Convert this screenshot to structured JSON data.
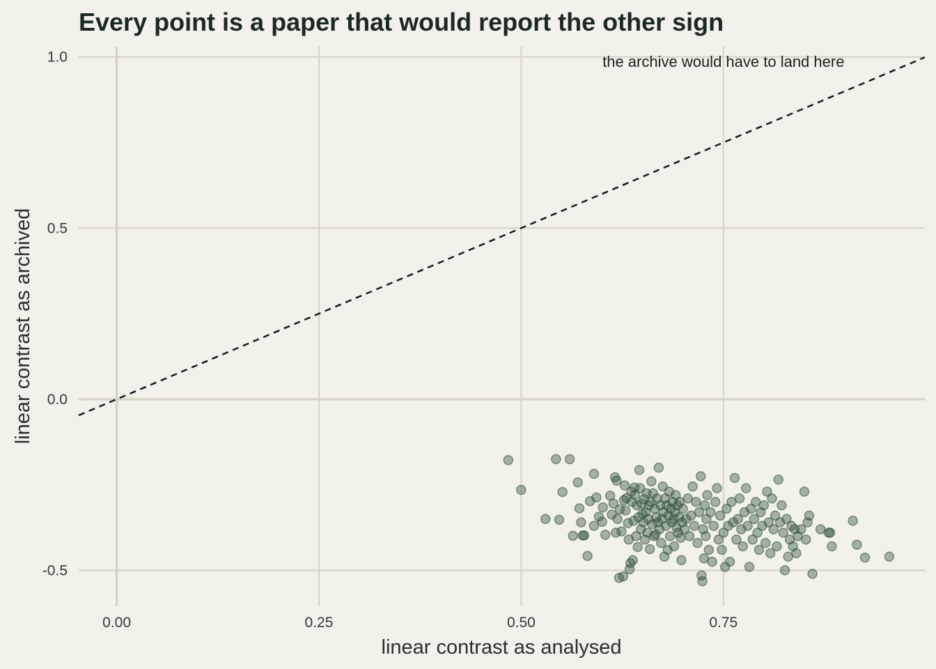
{
  "chart_data": {
    "type": "scatter",
    "title": "Every point is a paper that would report the other sign",
    "xlabel": "linear contrast as analysed",
    "ylabel": "linear contrast as archived",
    "xlim": [
      -0.047,
      0.999
    ],
    "ylim": [
      -0.605,
      1.03
    ],
    "xticks": [
      0.0,
      0.25,
      0.5,
      0.75
    ],
    "xtick_labels": [
      "0.00",
      "0.25",
      "0.50",
      "0.75"
    ],
    "yticks": [
      -0.5,
      0.0,
      0.5,
      1.0
    ],
    "ytick_labels": [
      "-0.5",
      "0.0",
      "0.5",
      "1.0"
    ],
    "grid": true,
    "reference_line": {
      "style": "dashed",
      "slope": 1,
      "intercept": 0
    },
    "annotation": {
      "text": "the archive would have to land here",
      "x": 0.75,
      "y": 0.985
    },
    "point_color": "#2d4f38",
    "point_opacity": 0.4,
    "background": "#f2f1ea",
    "grid_color": "#d4d3c3",
    "points": [
      [
        0.484,
        -0.178
      ],
      [
        0.5,
        -0.265
      ],
      [
        0.53,
        -0.35
      ],
      [
        0.543,
        -0.175
      ],
      [
        0.547,
        -0.352
      ],
      [
        0.551,
        -0.271
      ],
      [
        0.56,
        -0.175
      ],
      [
        0.564,
        -0.399
      ],
      [
        0.57,
        -0.243
      ],
      [
        0.572,
        -0.319
      ],
      [
        0.574,
        -0.36
      ],
      [
        0.576,
        -0.398
      ],
      [
        0.578,
        -0.398
      ],
      [
        0.582,
        -0.458
      ],
      [
        0.585,
        -0.298
      ],
      [
        0.59,
        -0.218
      ],
      [
        0.59,
        -0.37
      ],
      [
        0.593,
        -0.287
      ],
      [
        0.596,
        -0.343
      ],
      [
        0.6,
        -0.358
      ],
      [
        0.601,
        -0.316
      ],
      [
        0.604,
        -0.396
      ],
      [
        0.61,
        -0.282
      ],
      [
        0.612,
        -0.337
      ],
      [
        0.614,
        -0.305
      ],
      [
        0.616,
        -0.228
      ],
      [
        0.617,
        -0.39
      ],
      [
        0.618,
        -0.238
      ],
      [
        0.619,
        -0.35
      ],
      [
        0.621,
        -0.522
      ],
      [
        0.622,
        -0.322
      ],
      [
        0.624,
        -0.386
      ],
      [
        0.626,
        -0.518
      ],
      [
        0.627,
        -0.295
      ],
      [
        0.628,
        -0.252
      ],
      [
        0.629,
        -0.325
      ],
      [
        0.63,
        -0.289
      ],
      [
        0.632,
        -0.362
      ],
      [
        0.633,
        -0.41
      ],
      [
        0.634,
        -0.497
      ],
      [
        0.635,
        -0.479
      ],
      [
        0.636,
        -0.27
      ],
      [
        0.637,
        -0.3
      ],
      [
        0.638,
        -0.47
      ],
      [
        0.639,
        -0.355
      ],
      [
        0.64,
        -0.258
      ],
      [
        0.641,
        -0.28
      ],
      [
        0.642,
        -0.4
      ],
      [
        0.643,
        -0.31
      ],
      [
        0.644,
        -0.432
      ],
      [
        0.645,
        -0.345
      ],
      [
        0.646,
        -0.207
      ],
      [
        0.647,
        -0.26
      ],
      [
        0.648,
        -0.38
      ],
      [
        0.649,
        -0.305
      ],
      [
        0.65,
        -0.335
      ],
      [
        0.651,
        -0.36
      ],
      [
        0.652,
        -0.292
      ],
      [
        0.653,
        -0.41
      ],
      [
        0.654,
        -0.33
      ],
      [
        0.655,
        -0.275
      ],
      [
        0.656,
        -0.39
      ],
      [
        0.657,
        -0.35
      ],
      [
        0.658,
        -0.31
      ],
      [
        0.659,
        -0.438
      ],
      [
        0.66,
        -0.3
      ],
      [
        0.661,
        -0.24
      ],
      [
        0.662,
        -0.365
      ],
      [
        0.663,
        -0.275
      ],
      [
        0.664,
        -0.4
      ],
      [
        0.665,
        -0.32
      ],
      [
        0.666,
        -0.395
      ],
      [
        0.667,
        -0.345
      ],
      [
        0.668,
        -0.29
      ],
      [
        0.669,
        -0.36
      ],
      [
        0.67,
        -0.2
      ],
      [
        0.671,
        -0.38
      ],
      [
        0.672,
        -0.31
      ],
      [
        0.673,
        -0.42
      ],
      [
        0.674,
        -0.35
      ],
      [
        0.675,
        -0.255
      ],
      [
        0.676,
        -0.33
      ],
      [
        0.677,
        -0.46
      ],
      [
        0.678,
        -0.29
      ],
      [
        0.679,
        -0.37
      ],
      [
        0.68,
        -0.31
      ],
      [
        0.681,
        -0.44
      ],
      [
        0.682,
        -0.34
      ],
      [
        0.683,
        -0.27
      ],
      [
        0.684,
        -0.4
      ],
      [
        0.685,
        -0.32
      ],
      [
        0.686,
        -0.36
      ],
      [
        0.687,
        -0.3
      ],
      [
        0.688,
        -0.35
      ],
      [
        0.689,
        -0.43
      ],
      [
        0.69,
        -0.33
      ],
      [
        0.691,
        -0.28
      ],
      [
        0.692,
        -0.375
      ],
      [
        0.693,
        -0.31
      ],
      [
        0.694,
        -0.39
      ],
      [
        0.695,
        -0.345
      ],
      [
        0.696,
        -0.3
      ],
      [
        0.697,
        -0.405
      ],
      [
        0.698,
        -0.47
      ],
      [
        0.699,
        -0.36
      ],
      [
        0.7,
        -0.32
      ],
      [
        0.702,
        -0.38
      ],
      [
        0.704,
        -0.35
      ],
      [
        0.706,
        -0.29
      ],
      [
        0.708,
        -0.4
      ],
      [
        0.71,
        -0.34
      ],
      [
        0.712,
        -0.255
      ],
      [
        0.714,
        -0.37
      ],
      [
        0.716,
        -0.3
      ],
      [
        0.718,
        -0.42
      ],
      [
        0.72,
        -0.33
      ],
      [
        0.722,
        -0.225
      ],
      [
        0.723,
        -0.515
      ],
      [
        0.724,
        -0.532
      ],
      [
        0.725,
        -0.38
      ],
      [
        0.726,
        -0.465
      ],
      [
        0.727,
        -0.31
      ],
      [
        0.728,
        -0.4
      ],
      [
        0.729,
        -0.35
      ],
      [
        0.73,
        -0.28
      ],
      [
        0.732,
        -0.44
      ],
      [
        0.734,
        -0.33
      ],
      [
        0.736,
        -0.475
      ],
      [
        0.738,
        -0.37
      ],
      [
        0.74,
        -0.3
      ],
      [
        0.742,
        -0.26
      ],
      [
        0.744,
        -0.41
      ],
      [
        0.746,
        -0.34
      ],
      [
        0.748,
        -0.44
      ],
      [
        0.75,
        -0.39
      ],
      [
        0.752,
        -0.49
      ],
      [
        0.754,
        -0.32
      ],
      [
        0.756,
        -0.37
      ],
      [
        0.758,
        -0.475
      ],
      [
        0.76,
        -0.3
      ],
      [
        0.762,
        -0.36
      ],
      [
        0.764,
        -0.23
      ],
      [
        0.766,
        -0.41
      ],
      [
        0.768,
        -0.35
      ],
      [
        0.77,
        -0.29
      ],
      [
        0.772,
        -0.38
      ],
      [
        0.774,
        -0.43
      ],
      [
        0.776,
        -0.33
      ],
      [
        0.778,
        -0.26
      ],
      [
        0.78,
        -0.37
      ],
      [
        0.782,
        -0.49
      ],
      [
        0.784,
        -0.32
      ],
      [
        0.786,
        -0.41
      ],
      [
        0.788,
        -0.35
      ],
      [
        0.79,
        -0.3
      ],
      [
        0.792,
        -0.39
      ],
      [
        0.794,
        -0.44
      ],
      [
        0.796,
        -0.33
      ],
      [
        0.798,
        -0.37
      ],
      [
        0.8,
        -0.31
      ],
      [
        0.802,
        -0.42
      ],
      [
        0.804,
        -0.27
      ],
      [
        0.806,
        -0.36
      ],
      [
        0.808,
        -0.45
      ],
      [
        0.81,
        -0.29
      ],
      [
        0.812,
        -0.38
      ],
      [
        0.814,
        -0.34
      ],
      [
        0.816,
        -0.43
      ],
      [
        0.818,
        -0.235
      ],
      [
        0.82,
        -0.36
      ],
      [
        0.822,
        -0.31
      ],
      [
        0.824,
        -0.39
      ],
      [
        0.826,
        -0.5
      ],
      [
        0.828,
        -0.35
      ],
      [
        0.83,
        -0.46
      ],
      [
        0.832,
        -0.41
      ],
      [
        0.834,
        -0.37
      ],
      [
        0.836,
        -0.43
      ],
      [
        0.838,
        -0.38
      ],
      [
        0.84,
        -0.45
      ],
      [
        0.842,
        -0.4
      ],
      [
        0.846,
        -0.38
      ],
      [
        0.85,
        -0.27
      ],
      [
        0.852,
        -0.41
      ],
      [
        0.854,
        -0.36
      ],
      [
        0.856,
        -0.34
      ],
      [
        0.86,
        -0.51
      ],
      [
        0.87,
        -0.38
      ],
      [
        0.88,
        -0.39
      ],
      [
        0.882,
        -0.39
      ],
      [
        0.884,
        -0.43
      ],
      [
        0.91,
        -0.355
      ],
      [
        0.915,
        -0.425
      ],
      [
        0.925,
        -0.463
      ],
      [
        0.955,
        -0.46
      ]
    ]
  }
}
